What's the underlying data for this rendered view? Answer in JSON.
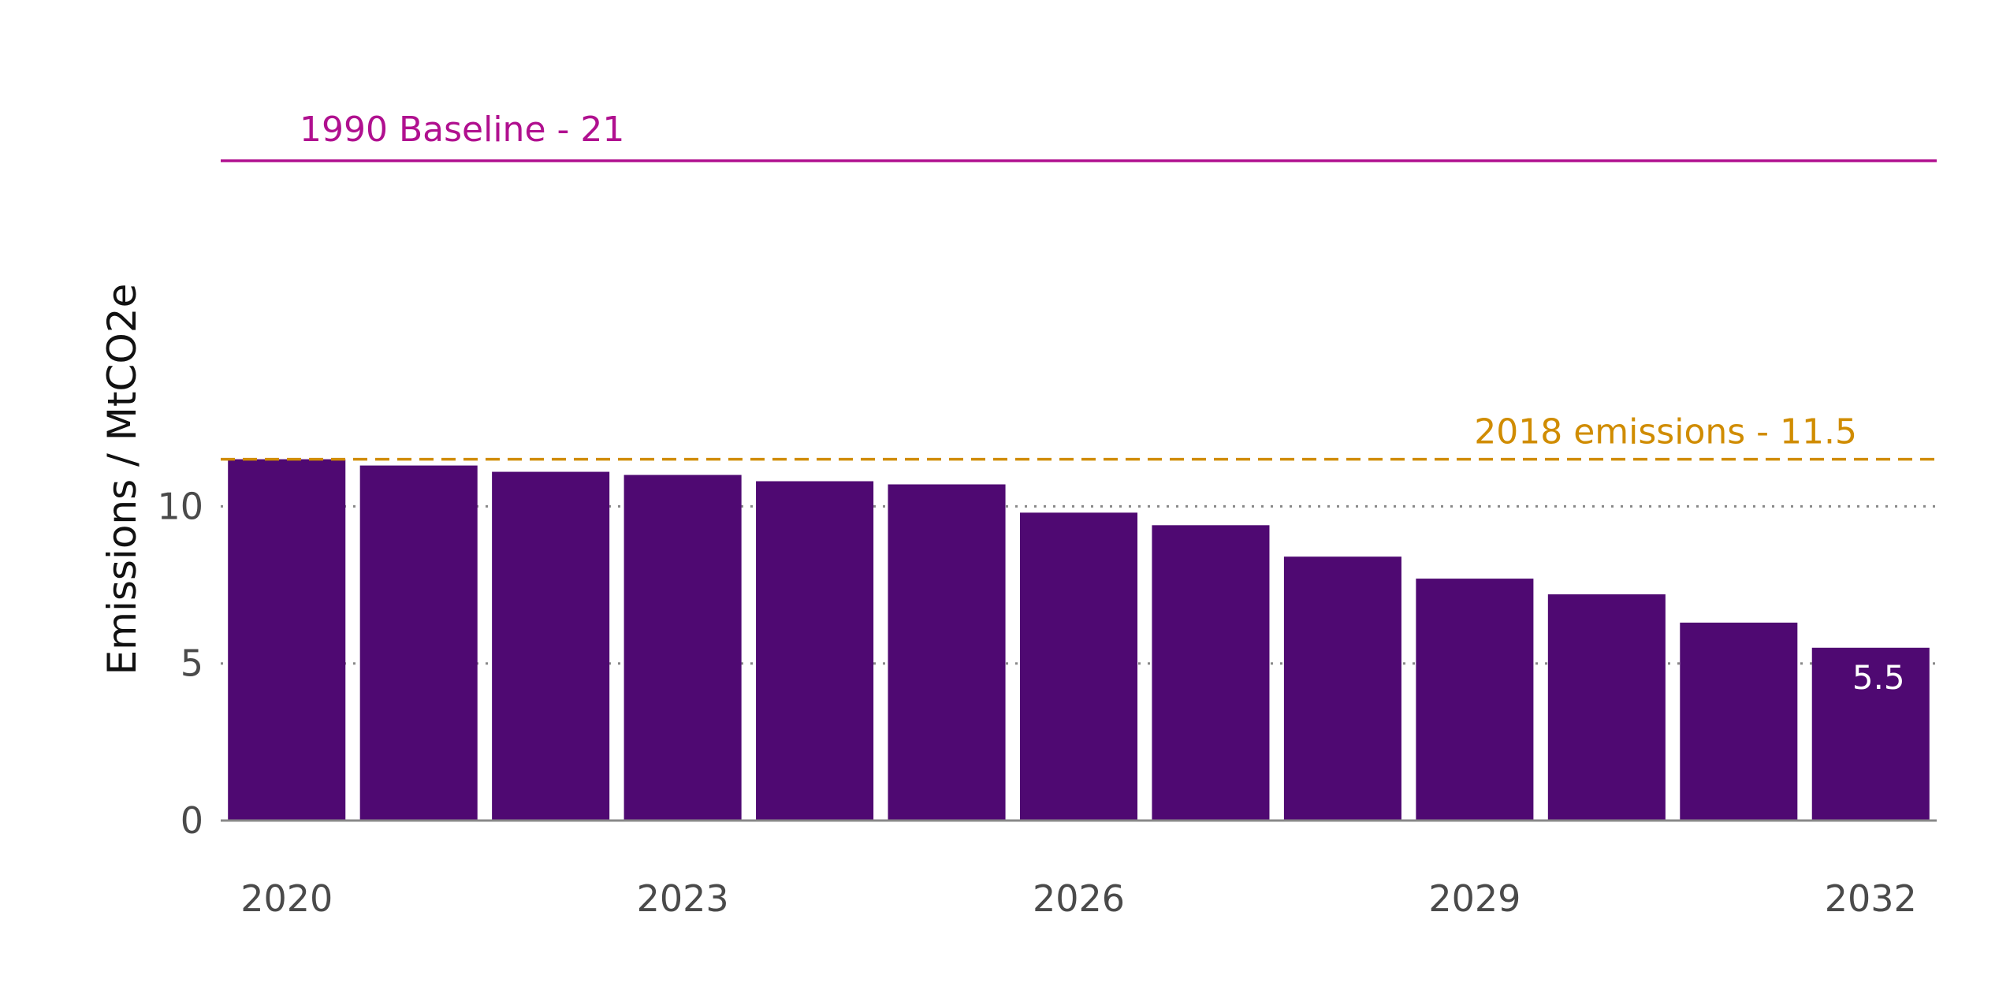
{
  "chart_data": {
    "type": "bar",
    "categories": [
      "2020",
      "2021",
      "2022",
      "2023",
      "2024",
      "2025",
      "2026",
      "2027",
      "2028",
      "2029",
      "2030",
      "2031",
      "2032"
    ],
    "values": [
      11.5,
      11.3,
      11.1,
      11.0,
      10.8,
      10.7,
      9.8,
      9.4,
      8.4,
      7.7,
      7.2,
      6.3,
      5.5
    ],
    "xlabel": "",
    "ylabel": "Emissions / MtCO2e",
    "ylim": [
      0,
      21
    ],
    "yticks": [
      "0",
      "5",
      "10"
    ],
    "xticks": [
      "2020",
      "2023",
      "2026",
      "2029",
      "2032"
    ],
    "grid": "horizontal dotted",
    "data_labels": [
      {
        "category": "2032",
        "text": "5.5"
      }
    ],
    "reference_lines": [
      {
        "label": "1990 Baseline - 21",
        "value": 21,
        "style": "solid",
        "color": "#B0108F"
      },
      {
        "label": "2018 emissions - 11.5",
        "value": 11.5,
        "style": "dashed",
        "color": "#D08C00"
      }
    ],
    "colors": {
      "bar": "#4F0972",
      "axis": "#888888",
      "grid": "#888888"
    }
  }
}
